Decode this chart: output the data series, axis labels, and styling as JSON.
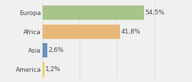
{
  "categories": [
    "Europa",
    "Africa",
    "Asia",
    "America"
  ],
  "values": [
    54.5,
    41.8,
    2.6,
    1.2
  ],
  "labels": [
    "54,5%",
    "41,8%",
    "2,6%",
    "1,2%"
  ],
  "bar_colors": [
    "#a8c48a",
    "#e8b87a",
    "#6e8fbf",
    "#e8d060"
  ],
  "background_color": "#f0f0f0",
  "xlim": [
    0,
    68
  ],
  "bar_height": 0.75,
  "label_fontsize": 6.5,
  "category_fontsize": 6.5
}
